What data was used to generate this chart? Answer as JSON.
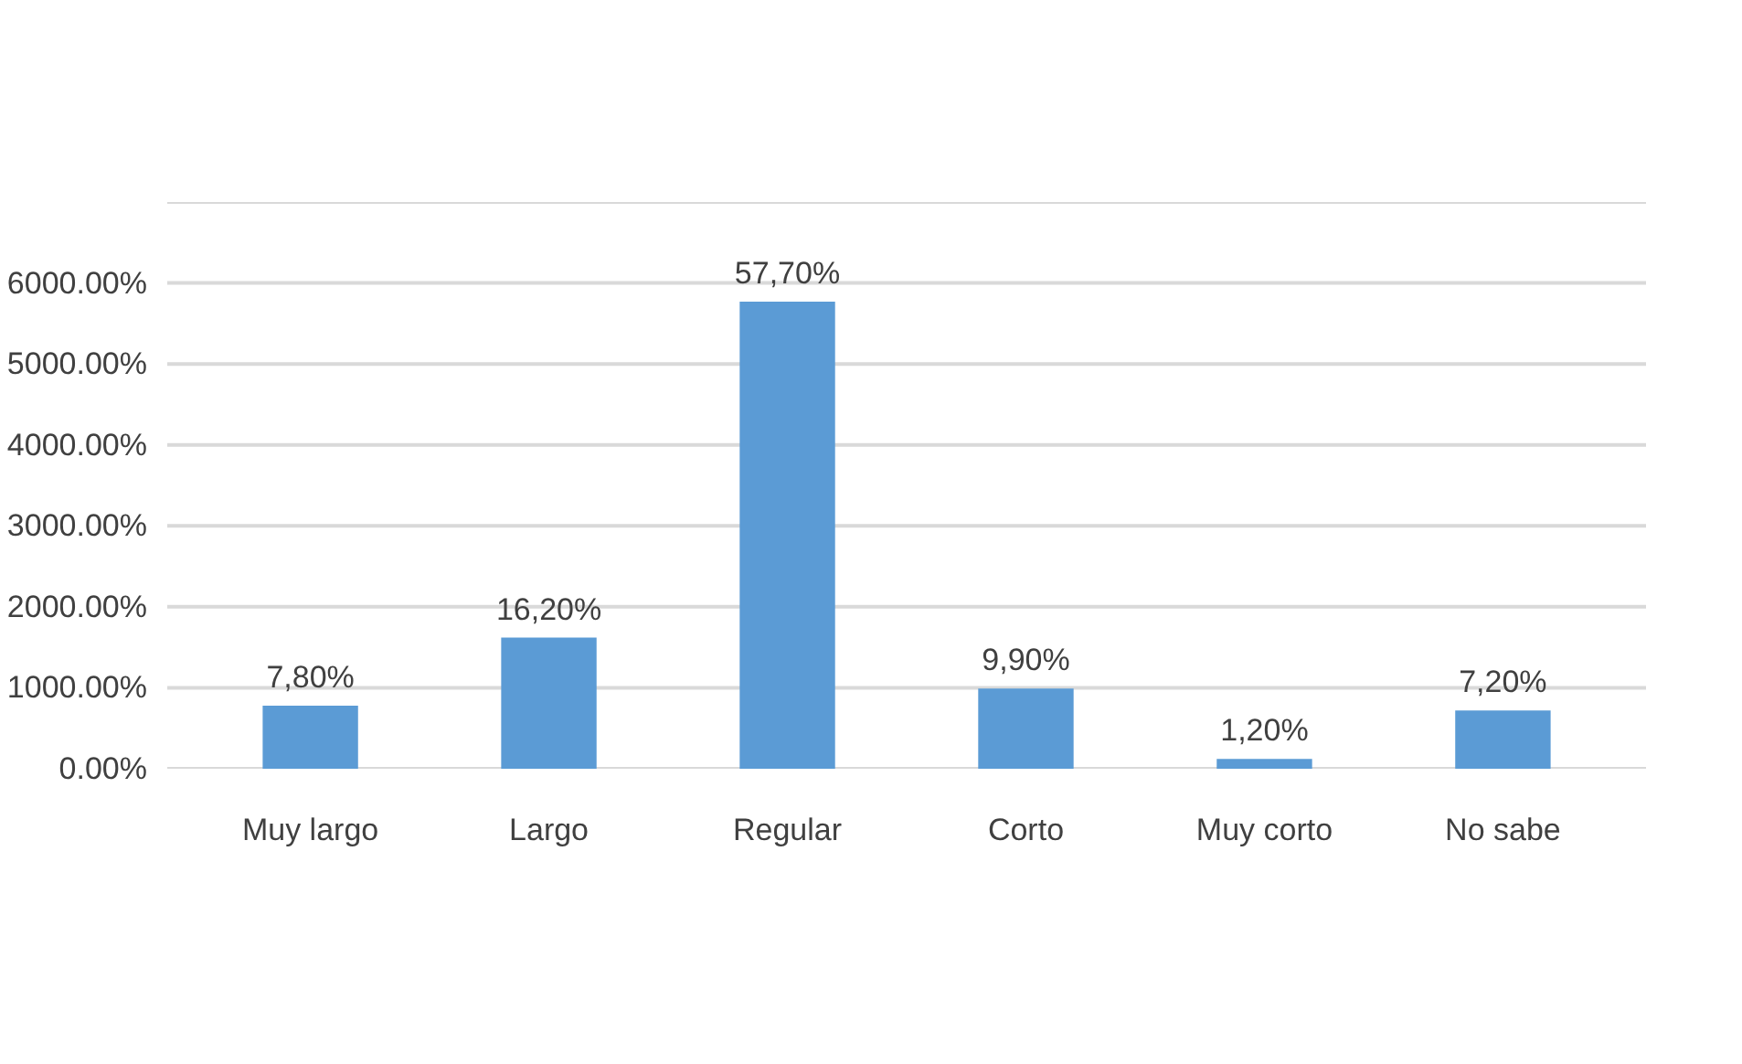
{
  "chart_data": {
    "type": "bar",
    "categories": [
      "Muy largo",
      "Largo",
      "Regular",
      "Corto",
      "Muy corto",
      "No sabe"
    ],
    "values": [
      7.8,
      16.2,
      57.7,
      9.9,
      1.2,
      7.2
    ],
    "value_labels": [
      "7,80%",
      "16,20%",
      "57,70%",
      "9,90%",
      "1,20%",
      "7,20%"
    ],
    "color": "#5b9bd5",
    "ylim": [
      0,
      70
    ],
    "yticks": [
      {
        "value": 0,
        "label": "0.00%"
      },
      {
        "value": 10,
        "label": "1000.00%"
      },
      {
        "value": 20,
        "label": "2000.00%"
      },
      {
        "value": 30,
        "label": "3000.00%"
      },
      {
        "value": 40,
        "label": "4000.00%"
      },
      {
        "value": 50,
        "label": "5000.00%"
      },
      {
        "value": 60,
        "label": "6000.00%"
      },
      {
        "value": 70,
        "label": null
      }
    ],
    "grid": "y",
    "legend": false
  }
}
